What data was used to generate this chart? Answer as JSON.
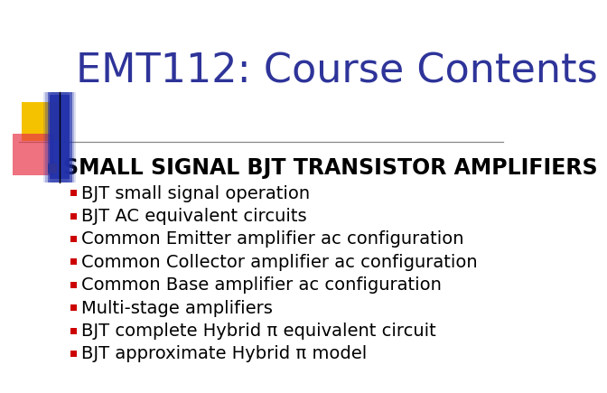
{
  "title": "EMT112: Course Contents",
  "title_color": "#2E3499",
  "background_color": "#FFFFFF",
  "title_fontsize": 32,
  "main_bullet": "SMALL SIGNAL BJT TRANSISTOR AMPLIFIERS",
  "main_bullet_color": "#000000",
  "main_bullet_fontsize": 17,
  "sub_bullets": [
    "BJT small signal operation",
    "BJT AC equivalent circuits",
    "Common Emitter amplifier ac configuration",
    "Common Collector amplifier ac configuration",
    "Common Base amplifier ac configuration",
    "Multi-stage amplifiers",
    "BJT complete Hybrid π equivalent circuit",
    "BJT approximate Hybrid π model"
  ],
  "sub_bullet_color": "#000000",
  "sub_bullet_fontsize": 14,
  "main_bullet_marker_color": "#2E3499",
  "sub_bullet_marker_color": "#CC0000",
  "separator_color": "#888888",
  "logo_yellow": "#F5C200",
  "logo_red": "#E8364A",
  "logo_blue": "#2030AA",
  "logo_blue_blur": "#3050CC"
}
